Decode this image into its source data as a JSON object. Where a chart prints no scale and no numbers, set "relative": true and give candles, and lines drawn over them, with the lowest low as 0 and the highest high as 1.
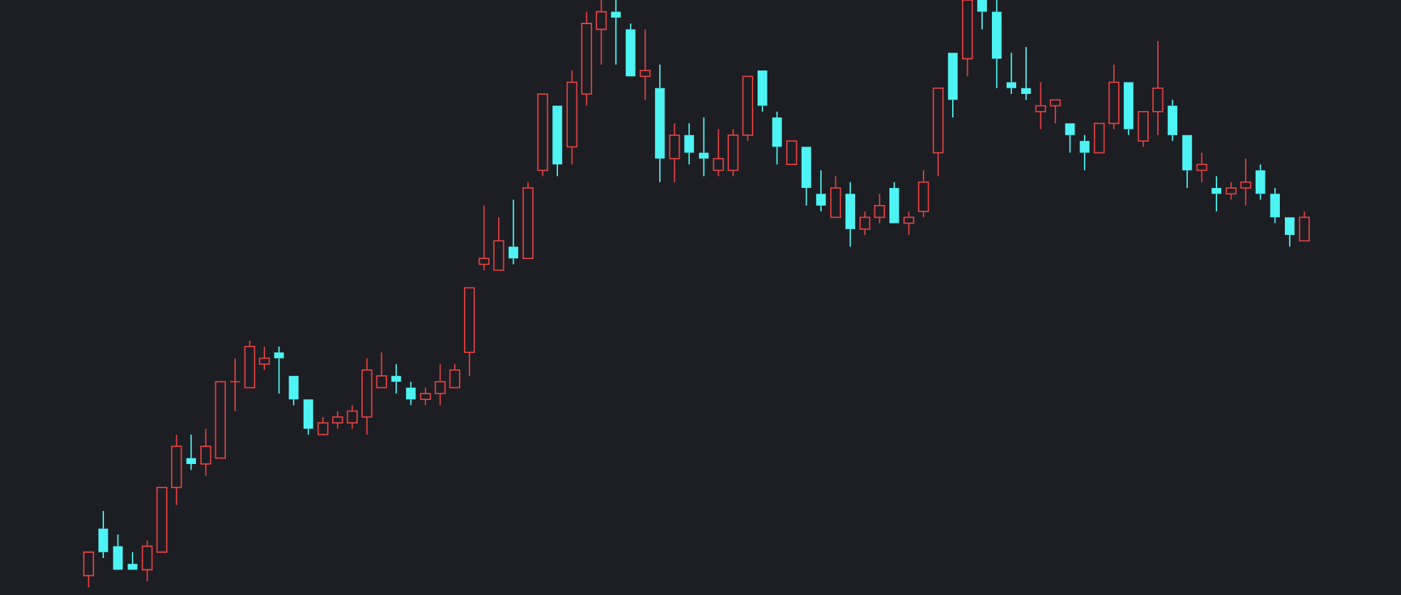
{
  "chart_data": {
    "type": "candlestick",
    "relative": true,
    "categories": [
      null,
      null,
      null,
      null,
      null,
      null,
      null,
      null,
      null,
      null,
      null,
      null,
      null,
      null,
      null,
      null,
      null,
      null,
      null,
      null,
      null,
      null,
      null,
      null,
      null,
      null,
      null,
      null,
      null,
      null,
      null,
      null,
      null,
      null,
      null,
      null,
      null,
      null,
      null,
      null,
      null,
      null,
      null,
      null,
      null,
      null,
      null,
      null,
      null,
      null,
      null,
      null,
      null,
      null,
      null,
      null,
      null,
      null,
      null,
      null,
      null,
      null,
      null,
      null,
      null,
      null,
      null,
      null,
      null,
      null,
      null,
      null,
      null,
      null,
      null,
      null,
      null,
      null,
      null,
      null,
      null,
      null,
      null,
      null
    ],
    "ohlc": [
      [
        0.02,
        0.06,
        0,
        0.06
      ],
      [
        0.1,
        0.13,
        0.05,
        0.06
      ],
      [
        0.07,
        0.09,
        0.03,
        0.03
      ],
      [
        0.04,
        0.06,
        0.03,
        0.03
      ],
      [
        0.03,
        0.08,
        0.01,
        0.07
      ],
      [
        0.06,
        0.17,
        0.06,
        0.17
      ],
      [
        0.17,
        0.26,
        0.14,
        0.24
      ],
      [
        0.22,
        0.26,
        0.2,
        0.21
      ],
      [
        0.21,
        0.27,
        0.19,
        0.24
      ],
      [
        0.22,
        0.35,
        0.22,
        0.35
      ],
      [
        0.35,
        0.39,
        0.3,
        0.35
      ],
      [
        0.34,
        0.42,
        0.34,
        0.41
      ],
      [
        0.38,
        0.41,
        0.37,
        0.39
      ],
      [
        0.4,
        0.41,
        0.33,
        0.39
      ],
      [
        0.36,
        0.36,
        0.31,
        0.32
      ],
      [
        0.32,
        0.32,
        0.26,
        0.27
      ],
      [
        0.26,
        0.29,
        0.26,
        0.28
      ],
      [
        0.28,
        0.3,
        0.27,
        0.29
      ],
      [
        0.28,
        0.31,
        0.27,
        0.3
      ],
      [
        0.29,
        0.39,
        0.26,
        0.37
      ],
      [
        0.34,
        0.4,
        0.34,
        0.36
      ],
      [
        0.36,
        0.38,
        0.33,
        0.35
      ],
      [
        0.34,
        0.35,
        0.31,
        0.32
      ],
      [
        0.32,
        0.34,
        0.31,
        0.33
      ],
      [
        0.33,
        0.38,
        0.31,
        0.35
      ],
      [
        0.34,
        0.38,
        0.34,
        0.37
      ],
      [
        0.4,
        0.51,
        0.36,
        0.51
      ],
      [
        0.55,
        0.65,
        0.54,
        0.56
      ],
      [
        0.54,
        0.63,
        0.54,
        0.59
      ],
      [
        0.58,
        0.66,
        0.55,
        0.56
      ],
      [
        0.56,
        0.69,
        0.56,
        0.68
      ],
      [
        0.71,
        0.84,
        0.7,
        0.84
      ],
      [
        0.82,
        0.82,
        0.7,
        0.72
      ],
      [
        0.75,
        0.88,
        0.72,
        0.86
      ],
      [
        0.84,
        0.98,
        0.82,
        0.96
      ],
      [
        0.95,
        1,
        0.89,
        0.98
      ],
      [
        0.98,
        1,
        0.89,
        0.97
      ],
      [
        0.95,
        0.96,
        0.87,
        0.87
      ],
      [
        0.87,
        0.95,
        0.83,
        0.88
      ],
      [
        0.85,
        0.89,
        0.69,
        0.73
      ],
      [
        0.73,
        0.79,
        0.69,
        0.77
      ],
      [
        0.77,
        0.79,
        0.72,
        0.74
      ],
      [
        0.74,
        0.8,
        0.7,
        0.73
      ],
      [
        0.71,
        0.78,
        0.7,
        0.73
      ],
      [
        0.71,
        0.78,
        0.7,
        0.77
      ],
      [
        0.77,
        0.87,
        0.76,
        0.87
      ],
      [
        0.88,
        0.88,
        0.81,
        0.82
      ],
      [
        0.8,
        0.81,
        0.72,
        0.75
      ],
      [
        0.72,
        0.76,
        0.72,
        0.76
      ],
      [
        0.75,
        0.75,
        0.65,
        0.68
      ],
      [
        0.67,
        0.71,
        0.64,
        0.65
      ],
      [
        0.63,
        0.7,
        0.63,
        0.68
      ],
      [
        0.67,
        0.69,
        0.58,
        0.61
      ],
      [
        0.61,
        0.64,
        0.6,
        0.63
      ],
      [
        0.63,
        0.67,
        0.62,
        0.65
      ],
      [
        0.68,
        0.69,
        0.62,
        0.62
      ],
      [
        0.62,
        0.64,
        0.6,
        0.63
      ],
      [
        0.64,
        0.71,
        0.63,
        0.69
      ],
      [
        0.74,
        0.85,
        0.7,
        0.85
      ],
      [
        0.91,
        0.91,
        0.8,
        0.83
      ],
      [
        0.9,
        1,
        0.87,
        1
      ],
      [
        1,
        1,
        0.95,
        0.98
      ],
      [
        0.98,
        1,
        0.85,
        0.9
      ],
      [
        0.86,
        0.91,
        0.84,
        0.85
      ],
      [
        0.85,
        0.92,
        0.83,
        0.84
      ],
      [
        0.81,
        0.86,
        0.78,
        0.82
      ],
      [
        0.82,
        0.83,
        0.79,
        0.83
      ],
      [
        0.79,
        0.79,
        0.74,
        0.77
      ],
      [
        0.76,
        0.77,
        0.71,
        0.74
      ],
      [
        0.74,
        0.79,
        0.74,
        0.79
      ],
      [
        0.79,
        0.89,
        0.78,
        0.86
      ],
      [
        0.86,
        0.86,
        0.77,
        0.78
      ],
      [
        0.76,
        0.81,
        0.75,
        0.81
      ],
      [
        0.81,
        0.93,
        0.77,
        0.85
      ],
      [
        0.82,
        0.83,
        0.76,
        0.77
      ],
      [
        0.77,
        0.77,
        0.68,
        0.71
      ],
      [
        0.71,
        0.74,
        0.69,
        0.72
      ],
      [
        0.68,
        0.7,
        0.64,
        0.67
      ],
      [
        0.67,
        0.69,
        0.66,
        0.68
      ],
      [
        0.68,
        0.73,
        0.65,
        0.69
      ],
      [
        0.71,
        0.72,
        0.66,
        0.67
      ],
      [
        0.67,
        0.68,
        0.62,
        0.63
      ],
      [
        0.63,
        0.63,
        0.58,
        0.6
      ],
      [
        0.59,
        0.64,
        0.59,
        0.63
      ]
    ],
    "colors": [
      "#e0413f",
      "#4ef3f3",
      "#4ef3f3",
      "#4ef3f3",
      "#e0413f",
      "#e0413f",
      "#e0413f",
      "#4ef3f3",
      "#e0413f",
      "#e0413f",
      "#e0413f",
      "#e0413f",
      "#e0413f",
      "#4ef3f3",
      "#4ef3f3",
      "#4ef3f3",
      "#e0413f",
      "#e0413f",
      "#e0413f",
      "#e0413f",
      "#e0413f",
      "#4ef3f3",
      "#4ef3f3",
      "#e0413f",
      "#e0413f",
      "#e0413f",
      "#e0413f",
      "#e0413f",
      "#e0413f",
      "#4ef3f3",
      "#e0413f",
      "#e0413f",
      "#4ef3f3",
      "#e0413f",
      "#e0413f",
      "#e0413f",
      "#4ef3f3",
      "#4ef3f3",
      "#e0413f",
      "#4ef3f3",
      "#e0413f",
      "#4ef3f3",
      "#4ef3f3",
      "#e0413f",
      "#e0413f",
      "#e0413f",
      "#4ef3f3",
      "#4ef3f3",
      "#e0413f",
      "#4ef3f3",
      "#4ef3f3",
      "#e0413f",
      "#4ef3f3",
      "#e0413f",
      "#e0413f",
      "#4ef3f3",
      "#e0413f",
      "#e0413f",
      "#e0413f",
      "#4ef3f3",
      "#e0413f",
      "#4ef3f3",
      "#4ef3f3",
      "#4ef3f3",
      "#4ef3f3",
      "#e0413f",
      "#e0413f",
      "#4ef3f3",
      "#4ef3f3",
      "#e0413f",
      "#e0413f",
      "#4ef3f3",
      "#e0413f",
      "#e0413f",
      "#4ef3f3",
      "#4ef3f3",
      "#e0413f",
      "#4ef3f3",
      "#e0413f",
      "#e0413f",
      "#4ef3f3",
      "#4ef3f3",
      "#4ef3f3",
      "#e0413f"
    ]
  }
}
